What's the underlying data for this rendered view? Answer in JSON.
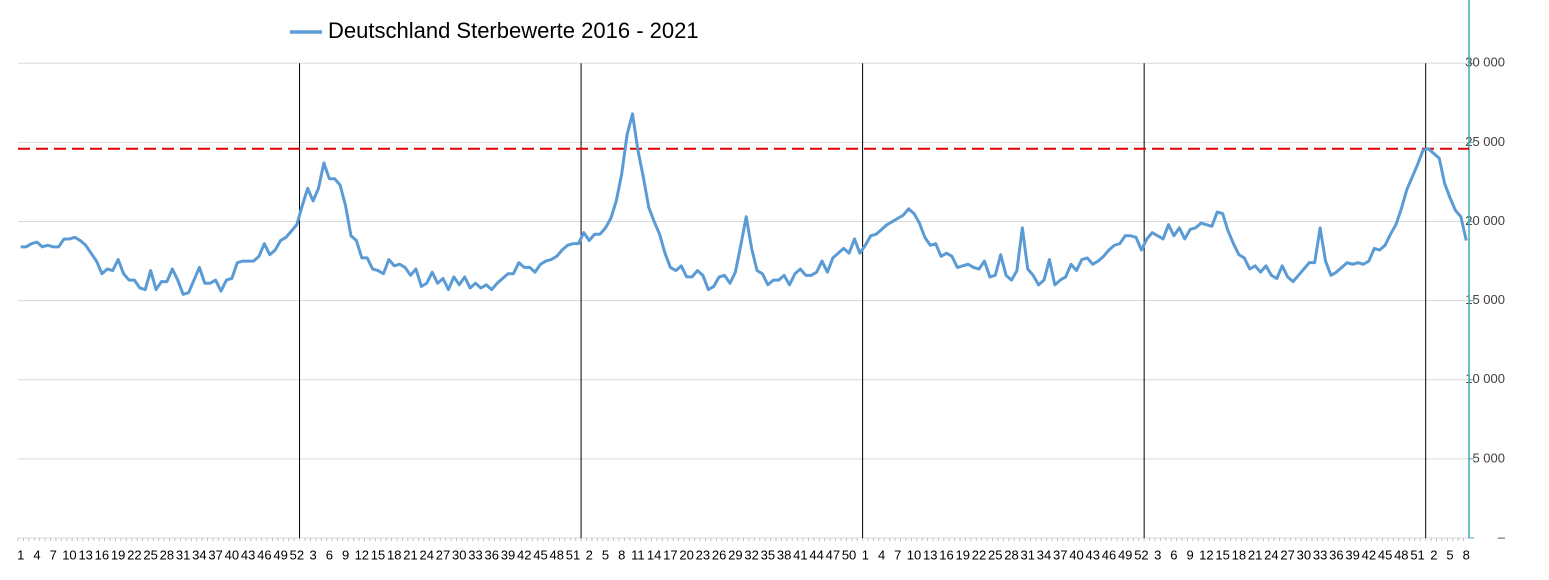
{
  "chart_data": {
    "type": "line",
    "categories": [
      "1",
      null,
      null,
      "4",
      null,
      null,
      "7",
      null,
      null,
      "10",
      null,
      null,
      "13",
      null,
      null,
      "16",
      null,
      null,
      "19",
      null,
      null,
      "22",
      null,
      null,
      "25",
      null,
      null,
      "28",
      null,
      null,
      "31",
      null,
      null,
      "34",
      null,
      null,
      "37",
      null,
      null,
      "40",
      null,
      null,
      "43",
      null,
      null,
      "46",
      null,
      null,
      "49",
      null,
      null,
      "52",
      null,
      null,
      "3",
      null,
      null,
      "6",
      null,
      null,
      "9",
      null,
      null,
      "12",
      null,
      null,
      "15",
      null,
      null,
      "18",
      null,
      null,
      "21",
      null,
      null,
      "24",
      null,
      null,
      "27",
      null,
      null,
      "30",
      null,
      null,
      "33",
      null,
      null,
      "36",
      null,
      null,
      "39",
      null,
      null,
      "42",
      null,
      null,
      "45",
      null,
      null,
      "48",
      null,
      null,
      "51",
      null,
      null,
      "2",
      null,
      null,
      "5",
      null,
      null,
      "8",
      null,
      null,
      "11",
      null,
      null,
      "14",
      null,
      null,
      "17",
      null,
      null,
      "20",
      null,
      null,
      "23",
      null,
      null,
      "26",
      null,
      null,
      "29",
      null,
      null,
      "32",
      null,
      null,
      "35",
      null,
      null,
      "38",
      null,
      null,
      "41",
      null,
      null,
      "44",
      null,
      null,
      "47",
      null,
      null,
      "50",
      null,
      null,
      "1",
      null,
      null,
      "4",
      null,
      null,
      "7",
      null,
      null,
      "10",
      null,
      null,
      "13",
      null,
      null,
      "16",
      null,
      null,
      "19",
      null,
      null,
      "22",
      null,
      null,
      "25",
      null,
      null,
      "28",
      null,
      null,
      "31",
      null,
      null,
      "34",
      null,
      null,
      "37",
      null,
      null,
      "40",
      null,
      null,
      "43",
      null,
      null,
      "46",
      null,
      null,
      "49",
      null,
      null,
      "52",
      null,
      null,
      "3",
      null,
      null,
      "6",
      null,
      null,
      "9",
      null,
      null,
      "12",
      null,
      null,
      "15",
      null,
      null,
      "18",
      null,
      null,
      "21",
      null,
      null,
      "24",
      null,
      null,
      "27",
      null,
      null,
      "30",
      null,
      null,
      "33",
      null,
      null,
      "36",
      null,
      null,
      "39",
      null,
      null,
      "42",
      null,
      null,
      "45",
      null,
      null,
      "48",
      null,
      null,
      "51",
      null,
      null,
      "2",
      null,
      null,
      "5",
      null,
      null,
      "8"
    ],
    "series": [
      {
        "name": "Deutschland Sterbewerte 2016 - 2021",
        "color": "#5b9bd5",
        "values": [
          18400,
          18400,
          18600,
          18700,
          18400,
          18500,
          18400,
          18400,
          18900,
          18900,
          19000,
          18800,
          18500,
          18000,
          17500,
          16700,
          17000,
          16900,
          17600,
          16700,
          16300,
          16300,
          15800,
          15700,
          16900,
          15700,
          16200,
          16200,
          17000,
          16300,
          15400,
          15500,
          16300,
          17100,
          16100,
          16100,
          16300,
          15600,
          16300,
          16400,
          17400,
          17500,
          17500,
          17500,
          17800,
          18600,
          17900,
          18200,
          18800,
          19000,
          19400,
          19800,
          21000,
          22100,
          21300,
          22100,
          23700,
          22700,
          22700,
          22300,
          21000,
          19100,
          18800,
          17700,
          17700,
          17000,
          16900,
          16700,
          17600,
          17200,
          17300,
          17100,
          16600,
          17000,
          15900,
          16100,
          16800,
          16100,
          16400,
          15700,
          16500,
          16000,
          16500,
          15800,
          16100,
          15800,
          16000,
          15700,
          16100,
          16400,
          16700,
          16700,
          17400,
          17100,
          17100,
          16800,
          17300,
          17500,
          17600,
          17800,
          18200,
          18500,
          18600,
          18600,
          19300,
          18800,
          19200,
          19200,
          19600,
          20200,
          21300,
          23000,
          25500,
          26800,
          24500,
          22800,
          20900,
          20000,
          19200,
          18000,
          17100,
          16900,
          17200,
          16500,
          16500,
          16900,
          16600,
          15700,
          15900,
          16500,
          16600,
          16100,
          16800,
          18500,
          20300,
          18300,
          16900,
          16700,
          16000,
          16300,
          16300,
          16600,
          16000,
          16700,
          17000,
          16600,
          16600,
          16800,
          17500,
          16800,
          17700,
          18000,
          18300,
          18000,
          18900,
          18000,
          18500,
          19100,
          19200,
          19500,
          19800,
          20000,
          20200,
          20400,
          20800,
          20500,
          19900,
          19000,
          18500,
          18600,
          17800,
          18000,
          17800,
          17100,
          17200,
          17300,
          17100,
          17000,
          17500,
          16500,
          16600,
          17900,
          16600,
          16300,
          16900,
          19600,
          17000,
          16600,
          16000,
          16300,
          17600,
          16000,
          16300,
          16500,
          17300,
          16900,
          17600,
          17700,
          17300,
          17500,
          17800,
          18200,
          18500,
          18600,
          19100,
          19100,
          19000,
          18200,
          18900,
          19300,
          19100,
          18900,
          19800,
          19100,
          19600,
          18900,
          19500,
          19600,
          19900,
          19800,
          19700,
          20600,
          20500,
          19400,
          18600,
          17900,
          17700,
          17000,
          17200,
          16800,
          17200,
          16600,
          16400,
          17200,
          16500,
          16200,
          16600,
          17000,
          17400,
          17400,
          19600,
          17500,
          16600,
          16800,
          17100,
          17400,
          17300,
          17400,
          17300,
          17500,
          18300,
          18200,
          18500,
          19200,
          19800,
          20800,
          22000,
          22800,
          23600,
          24500,
          24600,
          24300,
          24000,
          22400,
          21500,
          20700,
          20300,
          18800
        ]
      }
    ],
    "ylim": [
      0,
      34000
    ],
    "yticks": [
      {
        "value": 0,
        "label": "–"
      },
      {
        "value": 5000,
        "label": "5 000"
      },
      {
        "value": 10000,
        "label": "10 000"
      },
      {
        "value": 15000,
        "label": "15 000"
      },
      {
        "value": 20000,
        "label": "20 000"
      },
      {
        "value": 25000,
        "label": "25 000"
      },
      {
        "value": 30000,
        "label": "30 000"
      }
    ],
    "grid": true,
    "reference_line": {
      "value": 24600,
      "color": "#e00000"
    }
  }
}
